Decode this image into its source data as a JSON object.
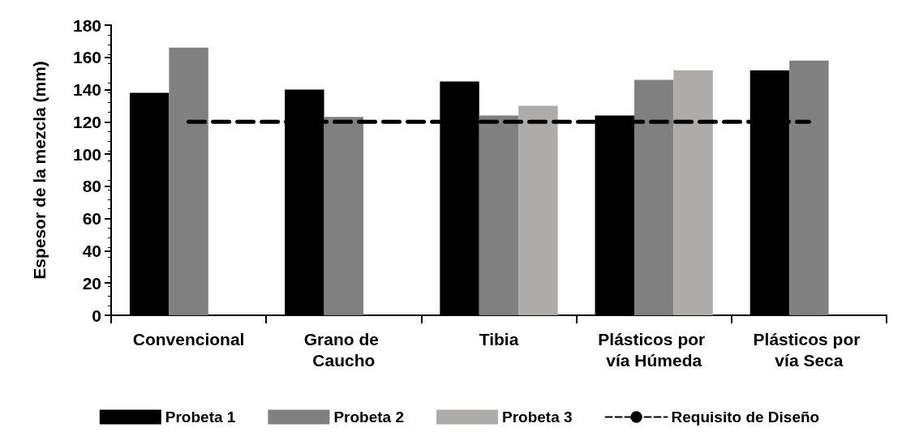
{
  "chart_data": {
    "type": "bar",
    "ylabel": "Espesor de la mezcla (mm)",
    "categories": [
      "Convencional",
      "Grano de Caucho",
      "Tibia",
      "Plásticos por vía Húmeda",
      "Plásticos por vía Seca"
    ],
    "series": [
      {
        "name": "Probeta 1",
        "color": "#000000",
        "values": [
          138,
          140,
          145,
          124,
          152
        ]
      },
      {
        "name": "Probeta 2",
        "color": "#808080",
        "values": [
          166,
          123,
          124,
          146,
          158
        ]
      },
      {
        "name": "Probeta 3",
        "color": "#aeabab",
        "values": [
          null,
          null,
          130,
          152,
          null
        ]
      },
      {
        "name": "Requisito de Diseño",
        "type": "line",
        "color": "#000000",
        "line_style": "dashed",
        "marker": "none",
        "values": [
          120,
          120,
          120,
          120,
          120
        ]
      }
    ],
    "ylim": [
      0,
      180
    ],
    "yticks": [
      0,
      20,
      40,
      60,
      80,
      100,
      120,
      140,
      160,
      180
    ],
    "grid": false,
    "legend": "bottom"
  }
}
